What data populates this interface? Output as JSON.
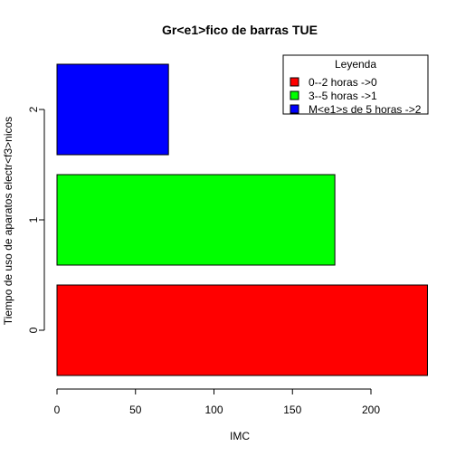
{
  "chart_data": {
    "type": "bar",
    "orientation": "horizontal",
    "title": "Gr<e1>fico de barras TUE",
    "xlabel": "IMC",
    "ylabel": "Tiempo de uso de aparatos electr<f3>nicos",
    "categories": [
      "0",
      "1",
      "2"
    ],
    "values": [
      236,
      177,
      71
    ],
    "colors": [
      "#ff0000",
      "#00ff00",
      "#0000ff"
    ],
    "x_ticks": [
      0,
      50,
      100,
      150,
      200
    ],
    "xlim": [
      0,
      236
    ],
    "grid": false,
    "legend": {
      "title": "Leyenda",
      "placement": "top-right",
      "entries": [
        {
          "label": "0--2 horas ->0",
          "color": "#ff0000"
        },
        {
          "label": "3--5 horas ->1",
          "color": "#00ff00"
        },
        {
          "label": "M<e1>s de 5 horas ->2",
          "color": "#0000ff"
        }
      ]
    }
  }
}
